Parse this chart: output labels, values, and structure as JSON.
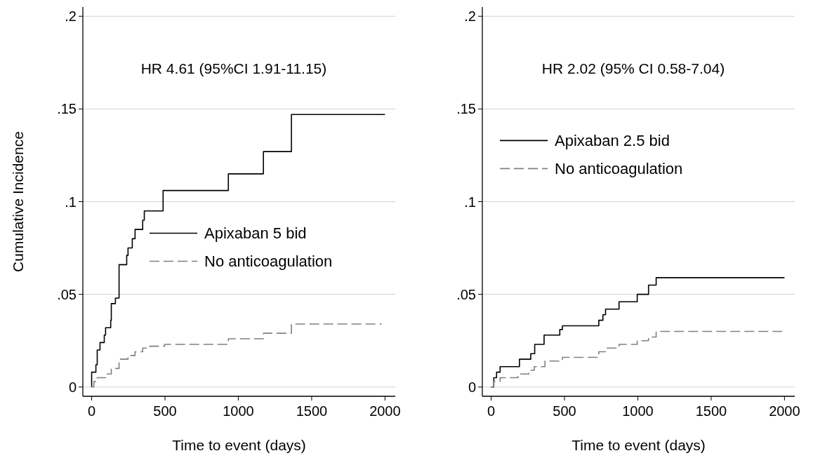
{
  "chart_data": [
    {
      "type": "step",
      "ylabel": "Cumulative Incidence",
      "xlabel": "Time to event (days)",
      "annotations": [
        "HR 4.61 (95%CI 1.91-11.15)"
      ],
      "xlim": [
        -60,
        2070
      ],
      "ylim": [
        -0.005,
        0.205
      ],
      "xticks": [
        0,
        500,
        1000,
        1500,
        2000
      ],
      "yticks": [
        0,
        {
          "value": 0.05,
          "label": ".05"
        },
        {
          "value": 0.1,
          "label": ".1"
        },
        {
          "value": 0.15,
          "label": ".15"
        },
        {
          "value": 0.2,
          "label": ".2"
        }
      ],
      "grid": "y",
      "legend": "right",
      "series": [
        {
          "name": "Apixaban 5 bid",
          "color": "#000000",
          "line_style": "solid",
          "x": [
            0,
            0,
            29,
            38,
            57,
            86,
            95,
            130,
            134,
            162,
            187,
            239,
            248,
            277,
            296,
            348,
            359,
            487,
            932,
            1171,
            1362,
            2000
          ],
          "values": [
            0,
            0.008,
            0.012,
            0.02,
            0.024,
            0.028,
            0.032,
            0.036,
            0.045,
            0.048,
            0.066,
            0.071,
            0.075,
            0.08,
            0.085,
            0.09,
            0.095,
            0.106,
            0.115,
            0.127,
            0.147,
            0.147
          ]
        },
        {
          "name": "No anticoagulation",
          "color": "#808080",
          "line_style": "dashed",
          "x": [
            0,
            15,
            38,
            95,
            134,
            187,
            248,
            296,
            348,
            372,
            497,
            932,
            1171,
            1362,
            1977
          ],
          "values": [
            0,
            0.003,
            0.005,
            0.007,
            0.01,
            0.015,
            0.017,
            0.019,
            0.021,
            0.022,
            0.023,
            0.026,
            0.029,
            0.034,
            0.034
          ]
        }
      ]
    },
    {
      "type": "step",
      "xlabel": "Time to event (days)",
      "annotations": [
        "HR 2.02 (95% CI 0.58-7.04)"
      ],
      "xlim": [
        -60,
        2070
      ],
      "ylim": [
        -0.005,
        0.205
      ],
      "xticks": [
        0,
        500,
        1000,
        1500,
        2000
      ],
      "yticks": [
        0,
        {
          "value": 0.05,
          "label": ".05"
        },
        {
          "value": 0.1,
          "label": ".1"
        },
        {
          "value": 0.15,
          "label": ".15"
        },
        {
          "value": 0.2,
          "label": ".2"
        }
      ],
      "grid": "y",
      "legend": "top left",
      "series": [
        {
          "name": "Apixaban 2.5 bid",
          "color": "#000000",
          "line_style": "solid",
          "x": [
            0,
            18,
            37,
            61,
            193,
            270,
            297,
            361,
            468,
            486,
            734,
            762,
            780,
            872,
            996,
            1073,
            1125,
            2000
          ],
          "values": [
            0,
            0.005,
            0.008,
            0.011,
            0.015,
            0.018,
            0.023,
            0.028,
            0.031,
            0.033,
            0.036,
            0.039,
            0.042,
            0.046,
            0.05,
            0.055,
            0.059,
            0.059
          ]
        },
        {
          "name": "No anticoagulation",
          "color": "#808080",
          "line_style": "dashed",
          "x": [
            0,
            18,
            61,
            183,
            257,
            294,
            367,
            486,
            734,
            780,
            872,
            996,
            1073,
            1125,
            2000
          ],
          "values": [
            0,
            0.003,
            0.005,
            0.007,
            0.009,
            0.011,
            0.014,
            0.016,
            0.019,
            0.021,
            0.023,
            0.025,
            0.027,
            0.03,
            0.03
          ]
        }
      ]
    }
  ]
}
